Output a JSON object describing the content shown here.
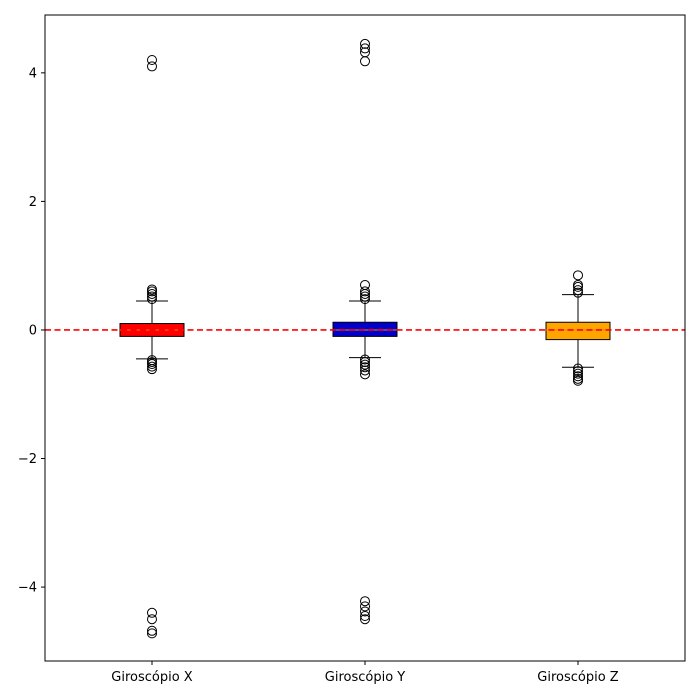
{
  "chart_data": {
    "type": "box",
    "title": "",
    "xlabel": "",
    "ylabel": "",
    "ylim": [
      -5.15,
      4.9
    ],
    "yticks": [
      -4,
      -2,
      0,
      2,
      4
    ],
    "ytick_labels": [
      "−4",
      "−2",
      "0",
      "2",
      "4"
    ],
    "grid": false,
    "legend": "none",
    "reference_line": {
      "y": 0,
      "color": "#ff0000",
      "style": "dashed"
    },
    "series": [
      {
        "name": "Giroscópio X",
        "color": "#ff0000",
        "median": 0.0,
        "q1": -0.1,
        "q3": 0.1,
        "whisker_low": -0.45,
        "whisker_high": 0.45,
        "outliers": [
          4.2,
          4.1,
          0.48,
          0.52,
          0.56,
          0.6,
          0.63,
          -0.47,
          -0.5,
          -0.53,
          -0.57,
          -0.61,
          -4.4,
          -4.5,
          -4.68,
          -4.72
        ]
      },
      {
        "name": "Giroscópio Y",
        "color": "#0000cc",
        "median": 0.0,
        "q1": -0.1,
        "q3": 0.12,
        "whisker_low": -0.43,
        "whisker_high": 0.45,
        "outliers": [
          4.45,
          4.38,
          4.32,
          4.18,
          0.48,
          0.52,
          0.56,
          0.6,
          0.7,
          -0.46,
          -0.5,
          -0.54,
          -0.58,
          -0.63,
          -0.69,
          -4.22,
          -4.3,
          -4.38,
          -4.45,
          -4.5
        ]
      },
      {
        "name": "Giroscópio Z",
        "color": "#ffa500",
        "median": 0.0,
        "q1": -0.15,
        "q3": 0.12,
        "whisker_low": -0.58,
        "whisker_high": 0.55,
        "outliers": [
          0.58,
          0.62,
          0.67,
          0.7,
          0.85,
          -0.6,
          -0.64,
          -0.68,
          -0.72,
          -0.76,
          -0.79
        ]
      }
    ]
  }
}
